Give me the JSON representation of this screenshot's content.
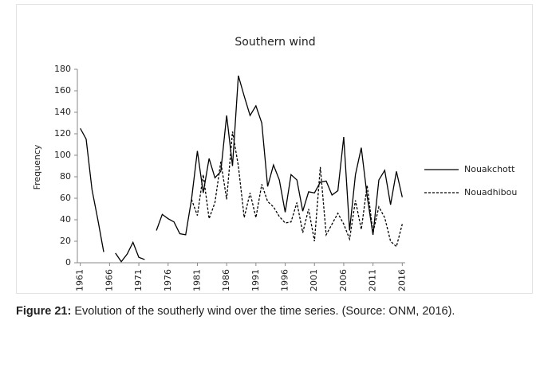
{
  "chart_data": {
    "type": "line",
    "title": "Southern  wind",
    "ylabel": "Frequency",
    "x": [
      1961,
      1962,
      1963,
      1964,
      1965,
      1966,
      1967,
      1968,
      1969,
      1970,
      1971,
      1972,
      1973,
      1974,
      1975,
      1976,
      1977,
      1978,
      1979,
      1980,
      1981,
      1982,
      1983,
      1984,
      1985,
      1986,
      1987,
      1988,
      1989,
      1990,
      1991,
      1992,
      1993,
      1994,
      1995,
      1996,
      1997,
      1998,
      1999,
      2000,
      2001,
      2002,
      2003,
      2004,
      2005,
      2006,
      2007,
      2008,
      2009,
      2010,
      2011,
      2012,
      2013,
      2014,
      2015,
      2016
    ],
    "series": [
      {
        "name": "Nouakchott",
        "color": "#000000",
        "style": "solid",
        "values": [
          125,
          115,
          68,
          40,
          10,
          null,
          9,
          1,
          8,
          19,
          5,
          3,
          null,
          30,
          45,
          41,
          38,
          27,
          26,
          59,
          104,
          65,
          97,
          79,
          85,
          137,
          90,
          174,
          155,
          137,
          146,
          130,
          71,
          91,
          77,
          47,
          82,
          77,
          48,
          66,
          65,
          75,
          76,
          63,
          67,
          117,
          30,
          82,
          107,
          62,
          26,
          77,
          86,
          54,
          85,
          61
        ]
      },
      {
        "name": "Nouadhibou",
        "color": "#000000",
        "style": "dashed",
        "values": [
          null,
          null,
          null,
          null,
          null,
          null,
          null,
          null,
          null,
          null,
          null,
          null,
          null,
          null,
          null,
          null,
          null,
          null,
          null,
          59,
          44,
          82,
          41,
          56,
          94,
          59,
          122,
          90,
          42,
          65,
          42,
          73,
          57,
          52,
          43,
          37,
          38,
          56,
          28,
          50,
          20,
          89,
          26,
          36,
          46,
          36,
          22,
          58,
          31,
          72,
          28,
          52,
          42,
          20,
          15,
          36
        ]
      }
    ],
    "xlim": [
      1960.5,
      2016.5
    ],
    "xticks": [
      1961,
      1966,
      1971,
      1976,
      1981,
      1986,
      1991,
      1996,
      2001,
      2006,
      2011,
      2016
    ],
    "ylim": [
      0,
      180
    ],
    "yticks": [
      0,
      20,
      40,
      60,
      80,
      100,
      120,
      140,
      160,
      180
    ],
    "grid": false,
    "legend": "right"
  },
  "caption": {
    "label": "Figure 21:",
    "text": " Evolution of the southerly wind over the time series. (Source: ONM, 2016)."
  }
}
